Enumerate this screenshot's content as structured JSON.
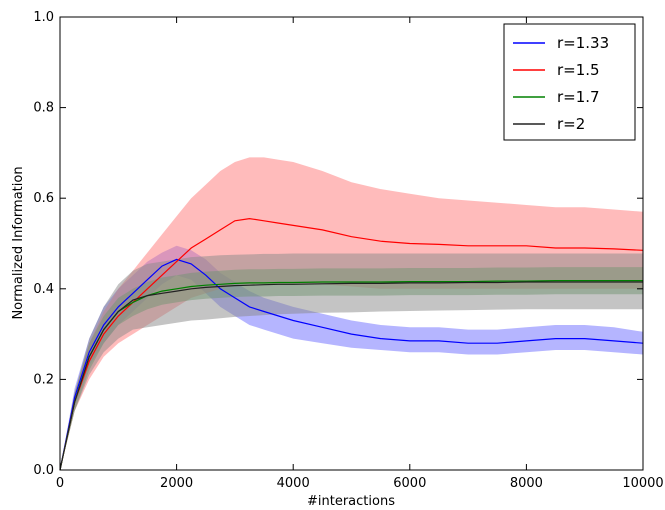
{
  "chart_data": {
    "type": "line",
    "xlabel": "#interactions",
    "ylabel": "Normalized Information",
    "xlim": [
      0,
      10000
    ],
    "ylim": [
      0.0,
      1.0
    ],
    "x_ticks": [
      0,
      2000,
      4000,
      6000,
      8000,
      10000
    ],
    "x_tick_labels": [
      "0",
      "2000",
      "4000",
      "6000",
      "8000",
      "10000"
    ],
    "y_ticks": [
      0.0,
      0.2,
      0.4,
      0.6,
      0.8,
      1.0
    ],
    "y_tick_labels": [
      "0.0",
      "0.2",
      "0.4",
      "0.6",
      "0.8",
      "1.0"
    ],
    "grid": false,
    "legend_position": "top-right",
    "x": [
      0,
      250,
      500,
      750,
      1000,
      1250,
      1500,
      1750,
      2000,
      2250,
      2500,
      2750,
      3000,
      3250,
      3500,
      3750,
      4000,
      4500,
      5000,
      5500,
      6000,
      6500,
      7000,
      7500,
      8000,
      8500,
      9000,
      9500,
      10000
    ],
    "series": [
      {
        "name": "r=1.33",
        "color": "#0000ff",
        "band_color": "#6b6bff",
        "values": [
          0.0,
          0.16,
          0.26,
          0.32,
          0.36,
          0.39,
          0.42,
          0.45,
          0.465,
          0.455,
          0.43,
          0.4,
          0.38,
          0.36,
          0.35,
          0.34,
          0.33,
          0.315,
          0.3,
          0.29,
          0.285,
          0.285,
          0.28,
          0.28,
          0.285,
          0.29,
          0.29,
          0.285,
          0.28
        ],
        "lower": [
          0.0,
          0.14,
          0.23,
          0.28,
          0.32,
          0.35,
          0.38,
          0.41,
          0.43,
          0.42,
          0.39,
          0.36,
          0.34,
          0.32,
          0.31,
          0.3,
          0.29,
          0.28,
          0.27,
          0.265,
          0.26,
          0.26,
          0.255,
          0.255,
          0.26,
          0.265,
          0.265,
          0.26,
          0.255
        ],
        "upper": [
          0.0,
          0.18,
          0.29,
          0.36,
          0.4,
          0.43,
          0.46,
          0.48,
          0.495,
          0.485,
          0.465,
          0.435,
          0.415,
          0.395,
          0.38,
          0.37,
          0.36,
          0.345,
          0.33,
          0.32,
          0.315,
          0.315,
          0.31,
          0.31,
          0.315,
          0.32,
          0.32,
          0.315,
          0.305
        ]
      },
      {
        "name": "r=1.5",
        "color": "#ff0000",
        "band_color": "#ff7777",
        "values": [
          0.0,
          0.15,
          0.24,
          0.3,
          0.34,
          0.37,
          0.4,
          0.43,
          0.46,
          0.49,
          0.51,
          0.53,
          0.55,
          0.555,
          0.55,
          0.545,
          0.54,
          0.53,
          0.515,
          0.505,
          0.5,
          0.498,
          0.495,
          0.495,
          0.495,
          0.49,
          0.49,
          0.488,
          0.485
        ],
        "lower": [
          0.0,
          0.13,
          0.2,
          0.25,
          0.28,
          0.3,
          0.32,
          0.34,
          0.36,
          0.38,
          0.39,
          0.4,
          0.41,
          0.41,
          0.41,
          0.41,
          0.41,
          0.41,
          0.405,
          0.4,
          0.4,
          0.4,
          0.4,
          0.4,
          0.4,
          0.4,
          0.4,
          0.4,
          0.4
        ],
        "upper": [
          0.0,
          0.17,
          0.28,
          0.35,
          0.4,
          0.44,
          0.48,
          0.52,
          0.56,
          0.6,
          0.63,
          0.66,
          0.68,
          0.69,
          0.69,
          0.685,
          0.68,
          0.66,
          0.635,
          0.62,
          0.61,
          0.6,
          0.595,
          0.59,
          0.585,
          0.58,
          0.58,
          0.575,
          0.57
        ]
      },
      {
        "name": "r=1.7",
        "color": "#008000",
        "band_color": "#5aa05a",
        "values": [
          0.0,
          0.15,
          0.25,
          0.31,
          0.35,
          0.37,
          0.385,
          0.395,
          0.4,
          0.405,
          0.408,
          0.41,
          0.412,
          0.413,
          0.413,
          0.414,
          0.414,
          0.415,
          0.415,
          0.415,
          0.416,
          0.416,
          0.416,
          0.417,
          0.417,
          0.418,
          0.418,
          0.418,
          0.418
        ],
        "lower": [
          0.0,
          0.13,
          0.22,
          0.28,
          0.32,
          0.34,
          0.355,
          0.365,
          0.37,
          0.375,
          0.378,
          0.38,
          0.382,
          0.383,
          0.383,
          0.384,
          0.384,
          0.385,
          0.385,
          0.385,
          0.386,
          0.386,
          0.386,
          0.387,
          0.387,
          0.388,
          0.388,
          0.388,
          0.388
        ],
        "upper": [
          0.0,
          0.17,
          0.28,
          0.34,
          0.38,
          0.4,
          0.415,
          0.425,
          0.43,
          0.435,
          0.438,
          0.44,
          0.442,
          0.443,
          0.443,
          0.444,
          0.444,
          0.445,
          0.445,
          0.445,
          0.446,
          0.446,
          0.446,
          0.447,
          0.447,
          0.448,
          0.448,
          0.448,
          0.448
        ]
      },
      {
        "name": "r=2",
        "color": "#222222",
        "band_color": "#8a8a8a",
        "values": [
          0.0,
          0.15,
          0.25,
          0.31,
          0.35,
          0.375,
          0.385,
          0.39,
          0.395,
          0.4,
          0.403,
          0.405,
          0.407,
          0.408,
          0.409,
          0.41,
          0.41,
          0.411,
          0.412,
          0.412,
          0.413,
          0.413,
          0.414,
          0.414,
          0.415,
          0.415,
          0.415,
          0.415,
          0.415
        ],
        "lower": [
          0.0,
          0.13,
          0.21,
          0.26,
          0.29,
          0.31,
          0.315,
          0.32,
          0.325,
          0.33,
          0.332,
          0.335,
          0.338,
          0.34,
          0.342,
          0.344,
          0.345,
          0.347,
          0.348,
          0.35,
          0.351,
          0.352,
          0.353,
          0.354,
          0.355,
          0.355,
          0.355,
          0.355,
          0.355
        ],
        "upper": [
          0.0,
          0.17,
          0.29,
          0.36,
          0.41,
          0.44,
          0.455,
          0.46,
          0.465,
          0.47,
          0.472,
          0.474,
          0.475,
          0.476,
          0.477,
          0.477,
          0.478,
          0.478,
          0.478,
          0.478,
          0.478,
          0.478,
          0.478,
          0.478,
          0.478,
          0.478,
          0.478,
          0.478,
          0.478
        ]
      }
    ]
  }
}
